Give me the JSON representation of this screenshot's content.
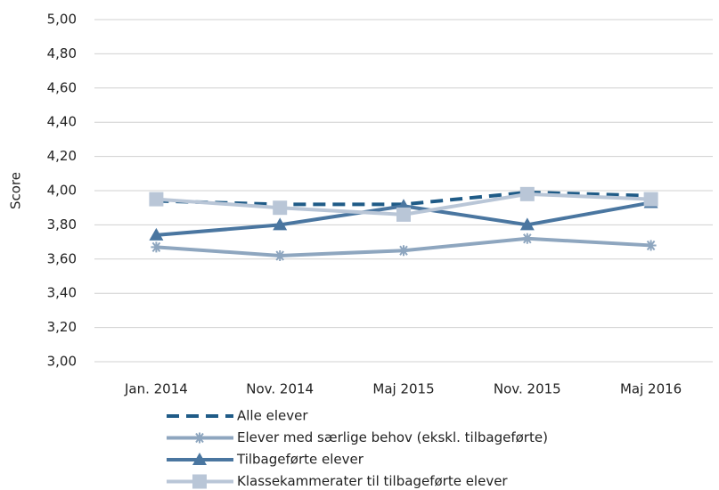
{
  "chart_data": {
    "type": "line",
    "ylabel": "Score",
    "categories": [
      "Jan. 2014",
      "Nov. 2014",
      "Maj 2015",
      "Nov. 2015",
      "Maj 2016"
    ],
    "ylim": [
      3,
      5
    ],
    "yticks": [
      {
        "value": 3,
        "label": "3,00"
      },
      {
        "value": 3.2,
        "label": "3,20"
      },
      {
        "value": 3.4,
        "label": "3,40"
      },
      {
        "value": 3.6,
        "label": "3,60"
      },
      {
        "value": 3.8,
        "label": "3,80"
      },
      {
        "value": 4,
        "label": "4,00"
      },
      {
        "value": 4.2,
        "label": "4,20"
      },
      {
        "value": 4.4,
        "label": "4,40"
      },
      {
        "value": 4.6,
        "label": "4,60"
      },
      {
        "value": 4.8,
        "label": "4,80"
      },
      {
        "value": 5,
        "label": "5,00"
      }
    ],
    "grid": true,
    "legend": "bottom",
    "series": [
      {
        "name": "Alle elever",
        "color": "#1f5b87",
        "dash": true,
        "marker": "none",
        "values": [
          3.94,
          3.92,
          3.92,
          3.99,
          3.97
        ]
      },
      {
        "name": "Elever med særlige behov (ekskl. tilbageførte)",
        "color": "#8ea6bf",
        "marker": "asterisk",
        "values": [
          3.67,
          3.62,
          3.65,
          3.72,
          3.68
        ]
      },
      {
        "name": "Tilbageførte elever",
        "color": "#4a76a0",
        "marker": "triangle",
        "values": [
          3.74,
          3.8,
          3.91,
          3.8,
          3.93
        ]
      },
      {
        "name": "Klassekammerater til tilbageførte elever",
        "color": "#b9c6d7",
        "marker": "square",
        "values": [
          3.95,
          3.9,
          3.86,
          3.98,
          3.95
        ]
      }
    ]
  }
}
